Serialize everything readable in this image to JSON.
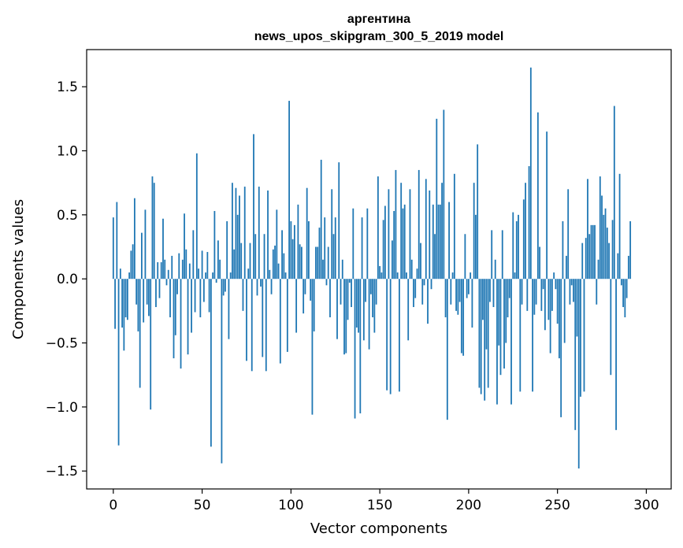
{
  "chart_data": {
    "type": "bar",
    "title": "аргентина",
    "subtitle": "news_upos_skipgram_300_5_2019 model",
    "xlabel": "Vector components",
    "ylabel": "Components values",
    "xlim": [
      -15,
      314
    ],
    "ylim": [
      -1.64,
      1.79
    ],
    "xticks": [
      0,
      50,
      100,
      150,
      200,
      250,
      300
    ],
    "yticks": [
      -1.5,
      -1.0,
      -0.5,
      0.0,
      0.5,
      1.0,
      1.5
    ],
    "ytick_labels": [
      "−1.5",
      "−1.0",
      "−0.5",
      "0.0",
      "0.5",
      "1.0",
      "1.5"
    ],
    "bar_color": "#1f77b4",
    "grid": false,
    "x": "0..299",
    "values": [
      0.48,
      -0.39,
      0.6,
      -1.3,
      0.08,
      -0.38,
      -0.56,
      -0.3,
      -0.32,
      0.05,
      0.22,
      0.27,
      0.63,
      -0.2,
      -0.41,
      -0.85,
      0.36,
      -0.34,
      0.54,
      -0.2,
      -0.29,
      -1.02,
      0.8,
      0.75,
      -0.22,
      0.13,
      -0.15,
      0.13,
      0.47,
      0.15,
      -0.05,
      0.07,
      -0.3,
      0.18,
      -0.62,
      -0.44,
      -0.12,
      0.2,
      -0.7,
      0.15,
      0.51,
      0.23,
      -0.59,
      0.12,
      -0.42,
      0.38,
      -0.26,
      0.98,
      0.08,
      -0.3,
      0.22,
      -0.18,
      0.05,
      0.21,
      -0.26,
      -1.31,
      0.05,
      0.53,
      -0.03,
      0.3,
      0.15,
      -1.44,
      -0.13,
      -0.1,
      0.45,
      -0.47,
      0.05,
      0.75,
      0.23,
      0.71,
      0.5,
      0.65,
      0.28,
      -0.25,
      0.72,
      -0.64,
      0.08,
      0.28,
      -0.72,
      1.13,
      0.35,
      -0.13,
      0.72,
      -0.06,
      -0.61,
      0.35,
      -0.72,
      0.69,
      0.07,
      -0.12,
      0.23,
      0.26,
      0.54,
      0.12,
      -0.66,
      0.38,
      0.2,
      0.05,
      -0.57,
      1.39,
      0.45,
      0.31,
      0.42,
      -0.42,
      0.58,
      0.27,
      0.25,
      -0.27,
      -0.12,
      0.71,
      0.45,
      -0.17,
      -1.06,
      -0.41,
      0.25,
      0.25,
      0.4,
      0.93,
      0.15,
      0.48,
      -0.05,
      0.25,
      -0.3,
      0.7,
      0.35,
      0.48,
      -0.47,
      0.91,
      -0.2,
      0.15,
      -0.59,
      -0.58,
      -0.32,
      -0.03,
      -0.22,
      0.55,
      -1.09,
      -0.38,
      -0.42,
      -1.05,
      0.48,
      -0.48,
      -0.18,
      0.55,
      -0.55,
      -0.12,
      -0.3,
      -0.42,
      -0.2,
      0.8,
      0.1,
      0.05,
      0.46,
      0.57,
      -0.87,
      0.7,
      -0.9,
      0.3,
      0.53,
      0.85,
      0.05,
      -0.88,
      0.75,
      0.55,
      0.58,
      0.05,
      -0.48,
      0.7,
      0.15,
      -0.22,
      -0.15,
      0.08,
      0.85,
      0.28,
      -0.2,
      -0.05,
      0.78,
      -0.35,
      0.69,
      -0.08,
      0.58,
      0.35,
      1.25,
      0.58,
      0.58,
      0.75,
      1.32,
      -0.3,
      -1.1,
      0.6,
      -0.2,
      0.05,
      0.82,
      -0.25,
      -0.28,
      -0.18,
      -0.58,
      -0.6,
      0.35,
      -0.15,
      -0.12,
      0.05,
      -0.38,
      0.75,
      0.5,
      1.05,
      -0.85,
      -0.9,
      -0.32,
      -0.95,
      -0.55,
      -0.85,
      -0.18,
      0.38,
      -0.22,
      0.15,
      -0.98,
      -0.52,
      -0.75,
      0.38,
      -0.7,
      -0.5,
      -0.3,
      -0.15,
      -0.98,
      0.52,
      0.05,
      0.45,
      0.5,
      -0.88,
      -0.2,
      0.62,
      0.75,
      -0.25,
      0.88,
      1.65,
      -0.88,
      -0.28,
      -0.2,
      1.3,
      0.25,
      -0.25,
      -0.08,
      -0.4,
      1.15,
      -0.32,
      -0.58,
      -0.25,
      0.05,
      -0.08,
      -0.35,
      -0.62,
      -1.08,
      0.45,
      -0.5,
      0.18,
      0.7,
      -0.2,
      -0.05,
      -0.18,
      -1.18,
      -0.45,
      -1.48,
      -0.92,
      0.28,
      -0.88,
      0.32,
      0.78,
      0.35,
      0.42,
      0.42,
      0.42,
      -0.2,
      0.15,
      0.8,
      0.65,
      0.5,
      0.55,
      0.4,
      0.28,
      -0.75,
      0.46,
      1.35,
      -1.18,
      0.2,
      0.82,
      -0.05,
      -0.22,
      -0.3,
      -0.15,
      0.18,
      0.45
    ]
  }
}
